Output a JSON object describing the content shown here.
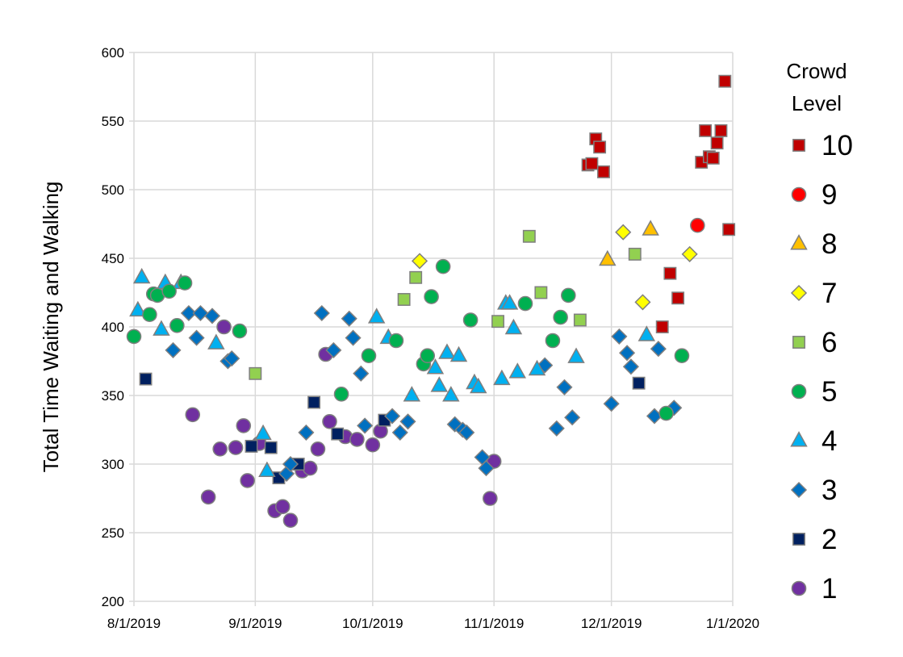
{
  "chart_data": {
    "type": "scatter",
    "title": "",
    "xlabel": "",
    "ylabel": "Total Time Waiting and Walking",
    "xlim": [
      "2019-08-01",
      "2020-01-01"
    ],
    "ylim": [
      200,
      600
    ],
    "yticks": [
      200,
      250,
      300,
      350,
      400,
      450,
      500,
      550,
      600
    ],
    "xticks": [
      {
        "date": "2019-08-01",
        "label": "8/1/2019"
      },
      {
        "date": "2019-09-01",
        "label": "9/1/2019"
      },
      {
        "date": "2019-10-01",
        "label": "10/1/2019"
      },
      {
        "date": "2019-11-01",
        "label": "11/1/2019"
      },
      {
        "date": "2019-12-01",
        "label": "12/1/2019"
      },
      {
        "date": "2020-01-01",
        "label": "1/1/2020"
      }
    ],
    "grid": true,
    "legend": {
      "title_line1": "Crowd",
      "title_line2": "Level",
      "placement": "right"
    },
    "series": [
      {
        "name": "10",
        "marker": "square",
        "color": "#C00000",
        "points": [
          [
            "2019-11-25",
            518
          ],
          [
            "2019-11-26",
            519
          ],
          [
            "2019-11-27",
            537
          ],
          [
            "2019-11-28",
            531
          ],
          [
            "2019-11-29",
            513
          ],
          [
            "2019-12-14",
            400
          ],
          [
            "2019-12-16",
            439
          ],
          [
            "2019-12-18",
            421
          ],
          [
            "2019-12-24",
            520
          ],
          [
            "2019-12-25",
            543
          ],
          [
            "2019-12-26",
            524
          ],
          [
            "2019-12-27",
            523
          ],
          [
            "2019-12-28",
            534
          ],
          [
            "2019-12-29",
            543
          ],
          [
            "2019-12-30",
            579
          ],
          [
            "2019-12-31",
            471
          ]
        ]
      },
      {
        "name": "9",
        "marker": "circle",
        "color": "#FF0000",
        "points": [
          [
            "2019-12-23",
            474
          ]
        ]
      },
      {
        "name": "8",
        "marker": "triangle",
        "color": "#FFC000",
        "points": [
          [
            "2019-11-30",
            449
          ],
          [
            "2019-12-11",
            471
          ]
        ]
      },
      {
        "name": "7",
        "marker": "diamond",
        "color": "#FFFF00",
        "points": [
          [
            "2019-10-13",
            448
          ],
          [
            "2019-12-04",
            469
          ],
          [
            "2019-12-09",
            418
          ],
          [
            "2019-12-21",
            453
          ]
        ]
      },
      {
        "name": "6",
        "marker": "square",
        "color": "#92D050",
        "points": [
          [
            "2019-09-01",
            366
          ],
          [
            "2019-10-09",
            420
          ],
          [
            "2019-10-12",
            436
          ],
          [
            "2019-11-02",
            404
          ],
          [
            "2019-11-10",
            466
          ],
          [
            "2019-11-13",
            425
          ],
          [
            "2019-11-23",
            405
          ],
          [
            "2019-12-07",
            453
          ]
        ]
      },
      {
        "name": "5",
        "marker": "circle",
        "color": "#00B050",
        "points": [
          [
            "2019-08-01",
            393
          ],
          [
            "2019-08-05",
            409
          ],
          [
            "2019-08-06",
            424
          ],
          [
            "2019-08-07",
            423
          ],
          [
            "2019-08-10",
            426
          ],
          [
            "2019-08-12",
            401
          ],
          [
            "2019-08-14",
            432
          ],
          [
            "2019-08-28",
            397
          ],
          [
            "2019-09-23",
            351
          ],
          [
            "2019-09-30",
            379
          ],
          [
            "2019-10-07",
            390
          ],
          [
            "2019-10-14",
            373
          ],
          [
            "2019-10-15",
            379
          ],
          [
            "2019-10-16",
            422
          ],
          [
            "2019-10-19",
            444
          ],
          [
            "2019-10-26",
            405
          ],
          [
            "2019-11-09",
            417
          ],
          [
            "2019-11-16",
            390
          ],
          [
            "2019-11-18",
            407
          ],
          [
            "2019-11-20",
            423
          ],
          [
            "2019-12-15",
            337
          ],
          [
            "2019-12-19",
            379
          ]
        ]
      },
      {
        "name": "4",
        "marker": "triangle",
        "color": "#00B0F0",
        "points": [
          [
            "2019-08-02",
            412
          ],
          [
            "2019-08-03",
            436
          ],
          [
            "2019-08-08",
            398
          ],
          [
            "2019-08-09",
            432
          ],
          [
            "2019-08-13",
            432
          ],
          [
            "2019-08-22",
            388
          ],
          [
            "2019-09-03",
            322
          ],
          [
            "2019-09-04",
            295
          ],
          [
            "2019-10-02",
            407
          ],
          [
            "2019-10-05",
            392
          ],
          [
            "2019-10-11",
            350
          ],
          [
            "2019-10-17",
            370
          ],
          [
            "2019-10-18",
            357
          ],
          [
            "2019-10-20",
            381
          ],
          [
            "2019-10-21",
            350
          ],
          [
            "2019-10-23",
            379
          ],
          [
            "2019-10-27",
            359
          ],
          [
            "2019-10-28",
            356
          ],
          [
            "2019-11-03",
            362
          ],
          [
            "2019-11-04",
            417
          ],
          [
            "2019-11-05",
            417
          ],
          [
            "2019-11-06",
            399
          ],
          [
            "2019-11-07",
            367
          ],
          [
            "2019-11-12",
            369
          ],
          [
            "2019-11-22",
            378
          ],
          [
            "2019-12-10",
            394
          ]
        ]
      },
      {
        "name": "3",
        "marker": "diamond",
        "color": "#0070C0",
        "points": [
          [
            "2019-08-11",
            383
          ],
          [
            "2019-08-15",
            410
          ],
          [
            "2019-08-17",
            392
          ],
          [
            "2019-08-18",
            410
          ],
          [
            "2019-08-21",
            408
          ],
          [
            "2019-08-25",
            375
          ],
          [
            "2019-08-26",
            377
          ],
          [
            "2019-09-09",
            293
          ],
          [
            "2019-09-10",
            300
          ],
          [
            "2019-09-14",
            323
          ],
          [
            "2019-09-18",
            410
          ],
          [
            "2019-09-21",
            383
          ],
          [
            "2019-09-25",
            406
          ],
          [
            "2019-09-26",
            392
          ],
          [
            "2019-09-28",
            366
          ],
          [
            "2019-09-29",
            328
          ],
          [
            "2019-10-06",
            335
          ],
          [
            "2019-10-08",
            323
          ],
          [
            "2019-10-10",
            331
          ],
          [
            "2019-10-22",
            329
          ],
          [
            "2019-10-24",
            325
          ],
          [
            "2019-10-25",
            323
          ],
          [
            "2019-10-29",
            305
          ],
          [
            "2019-10-30",
            297
          ],
          [
            "2019-11-14",
            372
          ],
          [
            "2019-11-17",
            326
          ],
          [
            "2019-11-19",
            356
          ],
          [
            "2019-11-21",
            334
          ],
          [
            "2019-12-01",
            344
          ],
          [
            "2019-12-03",
            393
          ],
          [
            "2019-12-05",
            381
          ],
          [
            "2019-12-06",
            371
          ],
          [
            "2019-12-12",
            335
          ],
          [
            "2019-12-13",
            384
          ],
          [
            "2019-12-17",
            341
          ]
        ]
      },
      {
        "name": "2",
        "marker": "square",
        "color": "#002060",
        "points": [
          [
            "2019-08-04",
            362
          ],
          [
            "2019-08-31",
            313
          ],
          [
            "2019-09-05",
            312
          ],
          [
            "2019-09-07",
            290
          ],
          [
            "2019-09-12",
            300
          ],
          [
            "2019-09-16",
            345
          ],
          [
            "2019-09-22",
            322
          ],
          [
            "2019-10-04",
            332
          ],
          [
            "2019-12-08",
            359
          ]
        ]
      },
      {
        "name": "1",
        "marker": "circle",
        "color": "#7030A0",
        "points": [
          [
            "2019-08-16",
            336
          ],
          [
            "2019-08-20",
            276
          ],
          [
            "2019-08-23",
            311
          ],
          [
            "2019-08-24",
            400
          ],
          [
            "2019-08-27",
            312
          ],
          [
            "2019-08-29",
            328
          ],
          [
            "2019-08-30",
            288
          ],
          [
            "2019-09-02",
            315
          ],
          [
            "2019-09-06",
            266
          ],
          [
            "2019-09-08",
            269
          ],
          [
            "2019-09-10",
            259
          ],
          [
            "2019-09-13",
            295
          ],
          [
            "2019-09-15",
            297
          ],
          [
            "2019-09-17",
            311
          ],
          [
            "2019-09-19",
            380
          ],
          [
            "2019-09-20",
            331
          ],
          [
            "2019-09-24",
            320
          ],
          [
            "2019-09-27",
            318
          ],
          [
            "2019-10-01",
            314
          ],
          [
            "2019-10-03",
            324
          ],
          [
            "2019-10-31",
            275
          ],
          [
            "2019-11-01",
            302
          ]
        ]
      }
    ]
  }
}
